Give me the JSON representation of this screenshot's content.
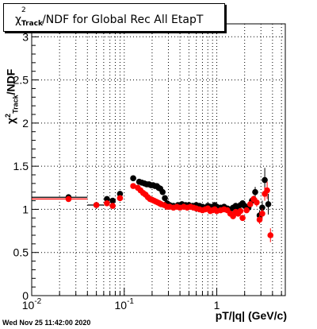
{
  "title": {
    "chi": "χ",
    "sup": "2",
    "sub": "Track",
    "rest": "/NDF for Global Rec All EtapT"
  },
  "y_axis_label": {
    "prefix": "χ",
    "sup": "2",
    "sub": "Track",
    "rest": "/NDF"
  },
  "x_axis_label": "pT/|q| (GeV/c)",
  "timestamp": "Wed Nov 25 11:42:00 2020",
  "chart_data": {
    "type": "scatter",
    "x_scale": "log",
    "xlim": [
      0.01,
      5.5
    ],
    "ylim": [
      0,
      3.15
    ],
    "x_ticks": [
      {
        "value": 0.01,
        "label": "10",
        "exp": "-2"
      },
      {
        "value": 0.1,
        "label": "10",
        "exp": "-1"
      },
      {
        "value": 1,
        "label": "1",
        "exp": ""
      }
    ],
    "y_ticks": [
      "0",
      "0.5",
      "1",
      "1.5",
      "2",
      "2.5",
      "3"
    ],
    "grid": true,
    "series": [
      {
        "color": "#000000",
        "points": [
          [
            0.025,
            1.14,
            0.015
          ],
          [
            0.05,
            1.05,
            0
          ],
          [
            0.065,
            1.12,
            0
          ],
          [
            0.075,
            1.1,
            0
          ],
          [
            0.09,
            1.18,
            0
          ],
          [
            0.125,
            1.36,
            0
          ],
          [
            0.145,
            1.32,
            0
          ],
          [
            0.155,
            1.31,
            0
          ],
          [
            0.165,
            1.3,
            0
          ],
          [
            0.175,
            1.29,
            0
          ],
          [
            0.185,
            1.29,
            0
          ],
          [
            0.195,
            1.28,
            0
          ],
          [
            0.205,
            1.28,
            0
          ],
          [
            0.215,
            1.27,
            0
          ],
          [
            0.225,
            1.27,
            0
          ],
          [
            0.235,
            1.25,
            0
          ],
          [
            0.245,
            1.24,
            0
          ],
          [
            0.26,
            1.2,
            0
          ],
          [
            0.275,
            1.13,
            0
          ],
          [
            0.29,
            1.07,
            0
          ],
          [
            0.31,
            1.05,
            0
          ],
          [
            0.34,
            1.04,
            0
          ],
          [
            0.38,
            1.05,
            0
          ],
          [
            0.42,
            1.06,
            0
          ],
          [
            0.46,
            1.05,
            0
          ],
          [
            0.5,
            1.05,
            0
          ],
          [
            0.55,
            1.04,
            0
          ],
          [
            0.6,
            1.05,
            0
          ],
          [
            0.65,
            1.04,
            0
          ],
          [
            0.7,
            1.03,
            0
          ],
          [
            0.75,
            1.02,
            0
          ],
          [
            0.8,
            1.04,
            0
          ],
          [
            0.85,
            1.03,
            0
          ],
          [
            0.9,
            1.02,
            0
          ],
          [
            0.95,
            1.05,
            0
          ],
          [
            1.0,
            1.03,
            0
          ],
          [
            1.1,
            1.02,
            0
          ],
          [
            1.2,
            1.03,
            0
          ],
          [
            1.3,
            1.01,
            0
          ],
          [
            1.4,
            1.0,
            0
          ],
          [
            1.5,
            1.02,
            0
          ],
          [
            1.6,
            1.04,
            0
          ],
          [
            1.7,
            1.03,
            0
          ],
          [
            1.8,
            1.05,
            0
          ],
          [
            1.9,
            1.07,
            0
          ],
          [
            2.0,
            1.04,
            0
          ],
          [
            2.2,
            1.02,
            0
          ],
          [
            2.4,
            1.1,
            0.04
          ],
          [
            2.6,
            1.2,
            0.06
          ],
          [
            2.9,
            0.93,
            0.06
          ],
          [
            3.1,
            1.02,
            0.08
          ],
          [
            3.3,
            1.34,
            0.14
          ],
          [
            3.6,
            1.06,
            0.12
          ]
        ]
      },
      {
        "color": "#ff0000",
        "points": [
          [
            0.025,
            1.12,
            0.015
          ],
          [
            0.05,
            1.05,
            0
          ],
          [
            0.065,
            1.07,
            0
          ],
          [
            0.075,
            1.04,
            0
          ],
          [
            0.09,
            1.13,
            0
          ],
          [
            0.125,
            1.27,
            0
          ],
          [
            0.14,
            1.25,
            0
          ],
          [
            0.15,
            1.22,
            0
          ],
          [
            0.16,
            1.19,
            0
          ],
          [
            0.17,
            1.17,
            0
          ],
          [
            0.18,
            1.14,
            0
          ],
          [
            0.19,
            1.12,
            0
          ],
          [
            0.2,
            1.11,
            0
          ],
          [
            0.21,
            1.1,
            0
          ],
          [
            0.22,
            1.09,
            0
          ],
          [
            0.23,
            1.08,
            0
          ],
          [
            0.24,
            1.07,
            0
          ],
          [
            0.25,
            1.06,
            0
          ],
          [
            0.27,
            1.05,
            0
          ],
          [
            0.29,
            1.03,
            0
          ],
          [
            0.31,
            1.03,
            0
          ],
          [
            0.34,
            1.02,
            0
          ],
          [
            0.37,
            1.03,
            0
          ],
          [
            0.4,
            1.02,
            0
          ],
          [
            0.44,
            1.03,
            0
          ],
          [
            0.48,
            1.02,
            0
          ],
          [
            0.52,
            1.03,
            0
          ],
          [
            0.56,
            1.02,
            0
          ],
          [
            0.6,
            1.01,
            0
          ],
          [
            0.65,
            1.0,
            0
          ],
          [
            0.7,
            0.99,
            0
          ],
          [
            0.75,
            1.0,
            0
          ],
          [
            0.8,
            1.01,
            0
          ],
          [
            0.85,
            0.98,
            0
          ],
          [
            0.9,
            0.99,
            0
          ],
          [
            0.95,
            1.0,
            0
          ],
          [
            1.0,
            0.98,
            0
          ],
          [
            1.1,
            0.99,
            0
          ],
          [
            1.2,
            1.0,
            0
          ],
          [
            1.3,
            0.99,
            0
          ],
          [
            1.4,
            0.95,
            0
          ],
          [
            1.5,
            0.92,
            0
          ],
          [
            1.6,
            0.97,
            0
          ],
          [
            1.7,
            0.95,
            0
          ],
          [
            1.8,
            0.98,
            0
          ],
          [
            1.9,
            0.9,
            0
          ],
          [
            2.1,
            0.99,
            0
          ],
          [
            2.3,
            1.06,
            0.03
          ],
          [
            2.5,
            1.12,
            0.04
          ],
          [
            2.7,
            1.08,
            0.05
          ],
          [
            2.9,
            0.88,
            0.05
          ],
          [
            3.1,
            0.95,
            0.06
          ],
          [
            3.3,
            1.18,
            0.08
          ],
          [
            3.5,
            1.22,
            0.1
          ],
          [
            3.8,
            0.7,
            0.08
          ]
        ]
      }
    ],
    "reference_segments": [
      {
        "color": "#000000",
        "y": 1.14,
        "x_from": 0.01,
        "x_to": 0.04
      },
      {
        "color": "#ff0000",
        "y": 1.12,
        "x_from": 0.01,
        "x_to": 0.04
      },
      {
        "color": "#000000",
        "y": 1.05,
        "x_from": 0.04,
        "x_to": 0.06
      }
    ]
  }
}
